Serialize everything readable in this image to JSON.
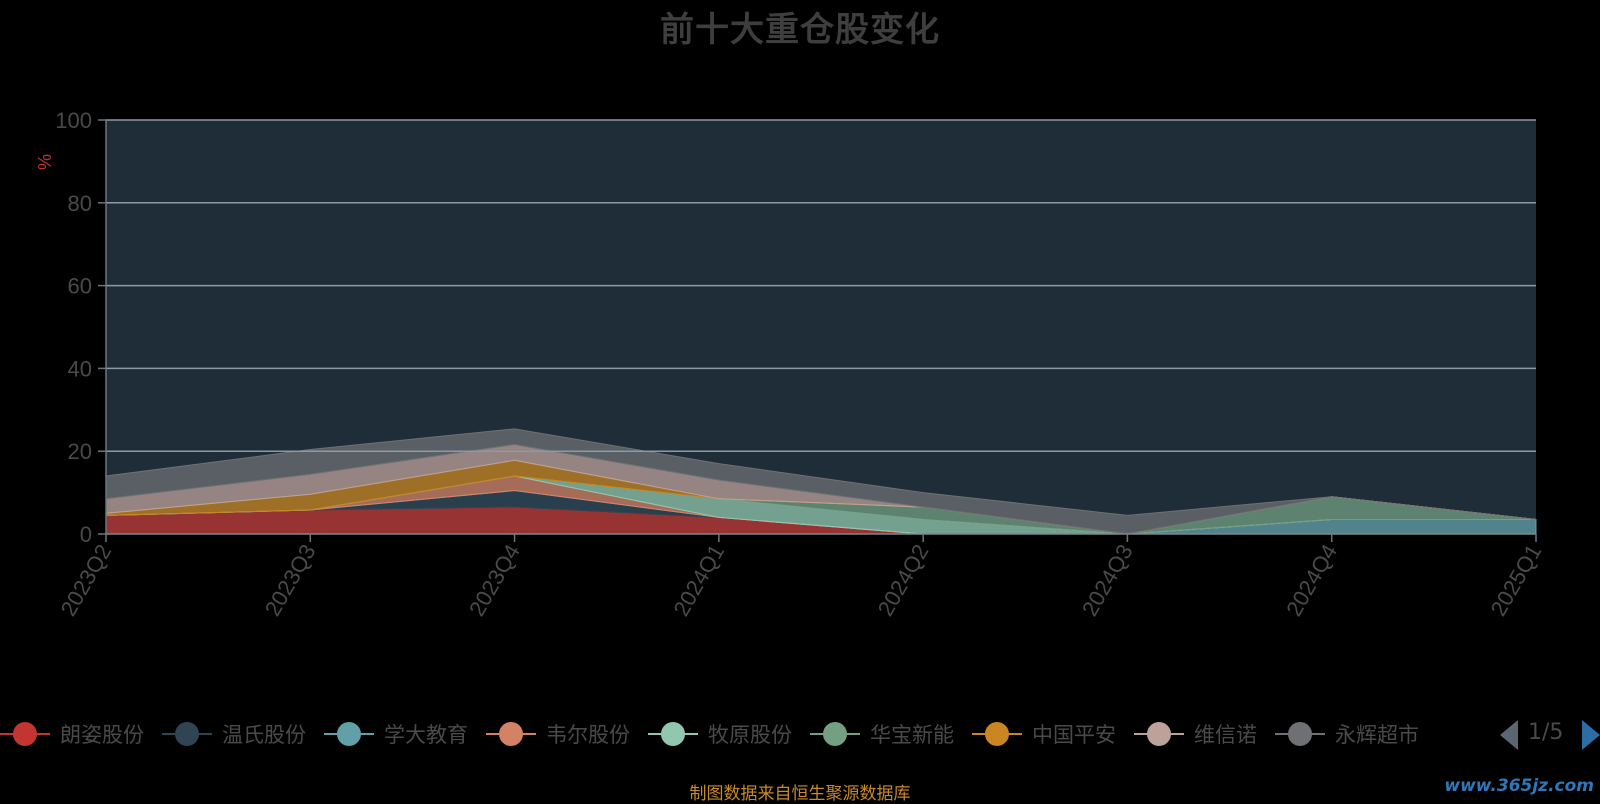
{
  "chart_data": {
    "type": "area",
    "title": "前十大重仓股变化",
    "ylabel": "%",
    "ylim": [
      0,
      100
    ],
    "yticks": [
      0,
      20,
      40,
      60,
      80,
      100
    ],
    "grid": true,
    "x": [
      "2023Q2",
      "2023Q3",
      "2023Q4",
      "2024Q1",
      "2024Q2",
      "2024Q3",
      "2024Q4",
      "2025Q1"
    ],
    "series": [
      {
        "name": "朗姿股份",
        "values": [
          4.5,
          5.8,
          6.5,
          4.0,
          0,
          0,
          0,
          0
        ]
      },
      {
        "name": "温氏股份",
        "values": [
          0,
          0,
          4.0,
          0,
          0,
          0,
          0,
          0
        ]
      },
      {
        "name": "学大教育",
        "values": [
          0,
          0,
          0,
          0,
          0,
          0,
          3.5,
          3.5
        ]
      },
      {
        "name": "韦尔股份",
        "values": [
          0,
          0,
          3.5,
          0,
          0,
          0,
          0,
          0
        ]
      },
      {
        "name": "牧原股份",
        "values": [
          0,
          0,
          0,
          4.5,
          3.5,
          0,
          0,
          0
        ]
      },
      {
        "name": "华宝新能",
        "values": [
          0,
          0,
          0,
          0,
          3.0,
          0,
          5.5,
          0
        ]
      },
      {
        "name": "中国平安",
        "values": [
          0.5,
          3.8,
          3.8,
          0,
          0,
          0,
          0,
          0
        ]
      },
      {
        "name": "维信诺",
        "values": [
          3.5,
          4.8,
          3.8,
          4.5,
          0,
          0,
          0,
          0
        ]
      },
      {
        "name": "永辉超市",
        "values": [
          5.5,
          6.0,
          3.8,
          4.0,
          3.5,
          4.5,
          0,
          0
        ]
      }
    ],
    "legend_page": "1/5",
    "footer_note": "制图数据来自恒生聚源数据库",
    "watermark": "www.365jz.com",
    "colors": [
      "#c23531",
      "#2f4554",
      "#61a0a8",
      "#d48265",
      "#91c7ae",
      "#749f83",
      "#ca8622",
      "#bda29a",
      "#6e7074",
      "#546570"
    ]
  }
}
